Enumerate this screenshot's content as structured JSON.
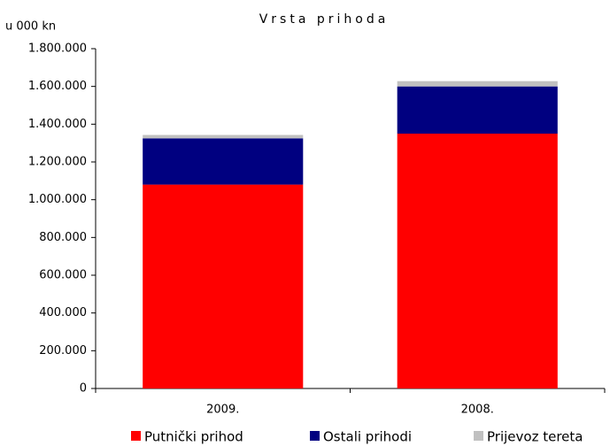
{
  "chart_data": {
    "type": "stacked-bar",
    "title": "Vrsta prihoda",
    "y_axis_label": "u 000 kn",
    "categories": [
      "2009.",
      "2008."
    ],
    "series": [
      {
        "name": "Putnički prihod",
        "color": "#ff0000",
        "values": [
          1080000,
          1350000
        ]
      },
      {
        "name": "Ostali prihodi",
        "color": "#000080",
        "values": [
          245000,
          250000
        ]
      },
      {
        "name": "Prijevoz tereta",
        "color": "#c0c0c0",
        "values": [
          18000,
          28000
        ]
      }
    ],
    "ylim": [
      0,
      1800000
    ],
    "yticks": [
      0,
      {
        "value": 200000,
        "label": "200.000"
      },
      {
        "value": 400000,
        "label": "400.000"
      },
      {
        "value": 600000,
        "label": "600.000"
      },
      {
        "value": 800000,
        "label": "800.000"
      },
      {
        "value": 1000000,
        "label": "1.000.000"
      },
      {
        "value": 1200000,
        "label": "1.200.000"
      },
      {
        "value": 1400000,
        "label": "1.400.000"
      },
      {
        "value": 1600000,
        "label": "1.600.000"
      },
      {
        "value": 1800000,
        "label": "1.800.000"
      }
    ],
    "grid": false,
    "legend": "bottom"
  }
}
